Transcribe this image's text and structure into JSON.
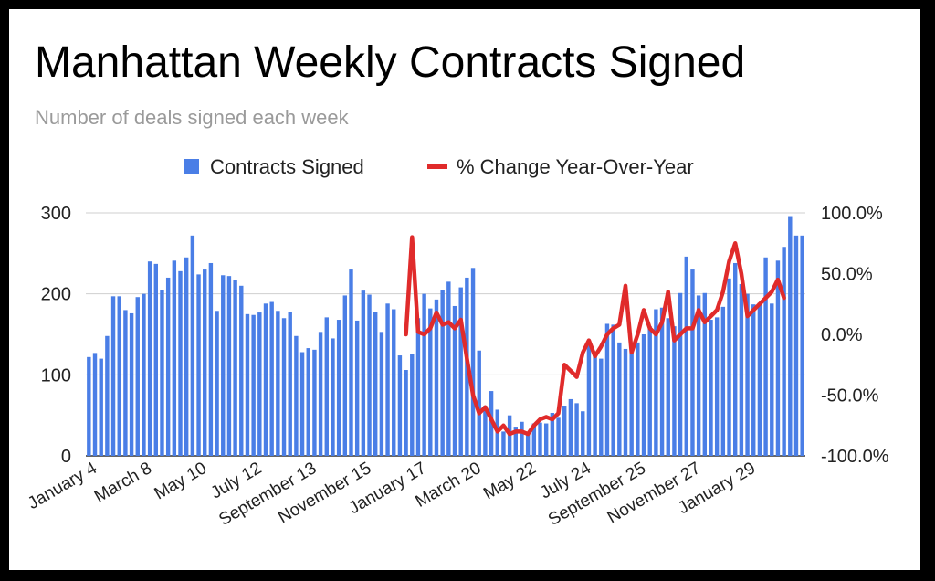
{
  "chart_data": {
    "type": "bar",
    "title": "Manhattan Weekly Contracts Signed",
    "subtitle": "Number of deals signed each week",
    "legend": [
      {
        "label": "Contracts Signed",
        "color": "#4a7ee6",
        "kind": "bar"
      },
      {
        "label": "% Change Year-Over-Year",
        "color": "#e02b2b",
        "kind": "line"
      }
    ],
    "legend_position": "top-center",
    "y_left": {
      "ticks": [
        0,
        100,
        200,
        300
      ],
      "tick_labels": [
        "0",
        "100",
        "200",
        "300"
      ],
      "ylim": [
        0,
        300
      ]
    },
    "y_right": {
      "ticks": [
        -100,
        -50,
        0,
        50,
        100
      ],
      "tick_labels": [
        "-100.0%",
        "-50.0%",
        "0.0%",
        "50.0%",
        "100.0%"
      ],
      "ylim": [
        -100,
        100
      ]
    },
    "x_tick_labels": [
      "January 4",
      "March 8",
      "May 10",
      "July 12",
      "September 13",
      "November 15",
      "January 17",
      "March 20",
      "May 22",
      "July 24",
      "September 25",
      "November 27",
      "January 29"
    ],
    "x_tick_week_index": [
      0,
      9,
      18,
      27,
      36,
      45,
      54,
      63,
      72,
      81,
      90,
      99,
      108
    ],
    "grid": true,
    "series": [
      {
        "name": "Contracts Signed",
        "type": "bar",
        "axis": "left",
        "values": [
          122,
          127,
          120,
          148,
          197,
          197,
          180,
          176,
          196,
          200,
          240,
          237,
          205,
          220,
          241,
          228,
          245,
          272,
          224,
          230,
          238,
          179,
          223,
          222,
          217,
          210,
          175,
          174,
          177,
          188,
          190,
          179,
          170,
          178,
          148,
          128,
          133,
          131,
          153,
          171,
          145,
          168,
          198,
          230,
          167,
          204,
          199,
          178,
          153,
          188,
          181,
          124,
          106,
          126,
          170,
          200,
          182,
          193,
          205,
          215,
          185,
          208,
          220,
          232,
          130,
          62,
          80,
          57,
          30,
          50,
          36,
          42,
          28,
          40,
          41,
          40,
          53,
          47,
          62,
          70,
          65,
          55,
          136,
          129,
          120,
          163,
          162,
          140,
          132,
          130,
          140,
          150,
          160,
          181,
          183,
          170,
          160,
          201,
          246,
          230,
          198,
          201,
          168,
          171,
          184,
          219,
          238,
          212,
          200,
          187,
          189,
          245,
          188,
          241,
          258,
          296,
          272,
          272
        ]
      },
      {
        "name": "% Change Year-Over-Year",
        "type": "line",
        "axis": "right",
        "start_index": 52,
        "values": [
          0,
          80,
          2,
          0,
          5,
          18,
          8,
          10,
          5,
          12,
          -20,
          -50,
          -65,
          -60,
          -70,
          -80,
          -75,
          -82,
          -80,
          -80,
          -82,
          -75,
          -70,
          -68,
          -70,
          -65,
          -25,
          -30,
          -35,
          -15,
          -5,
          -18,
          -10,
          0,
          5,
          8,
          40,
          -15,
          0,
          20,
          5,
          0,
          10,
          35,
          -5,
          0,
          5,
          5,
          20,
          10,
          15,
          20,
          35,
          60,
          75,
          50,
          15,
          20,
          25,
          30,
          35,
          45,
          30
        ]
      }
    ]
  }
}
